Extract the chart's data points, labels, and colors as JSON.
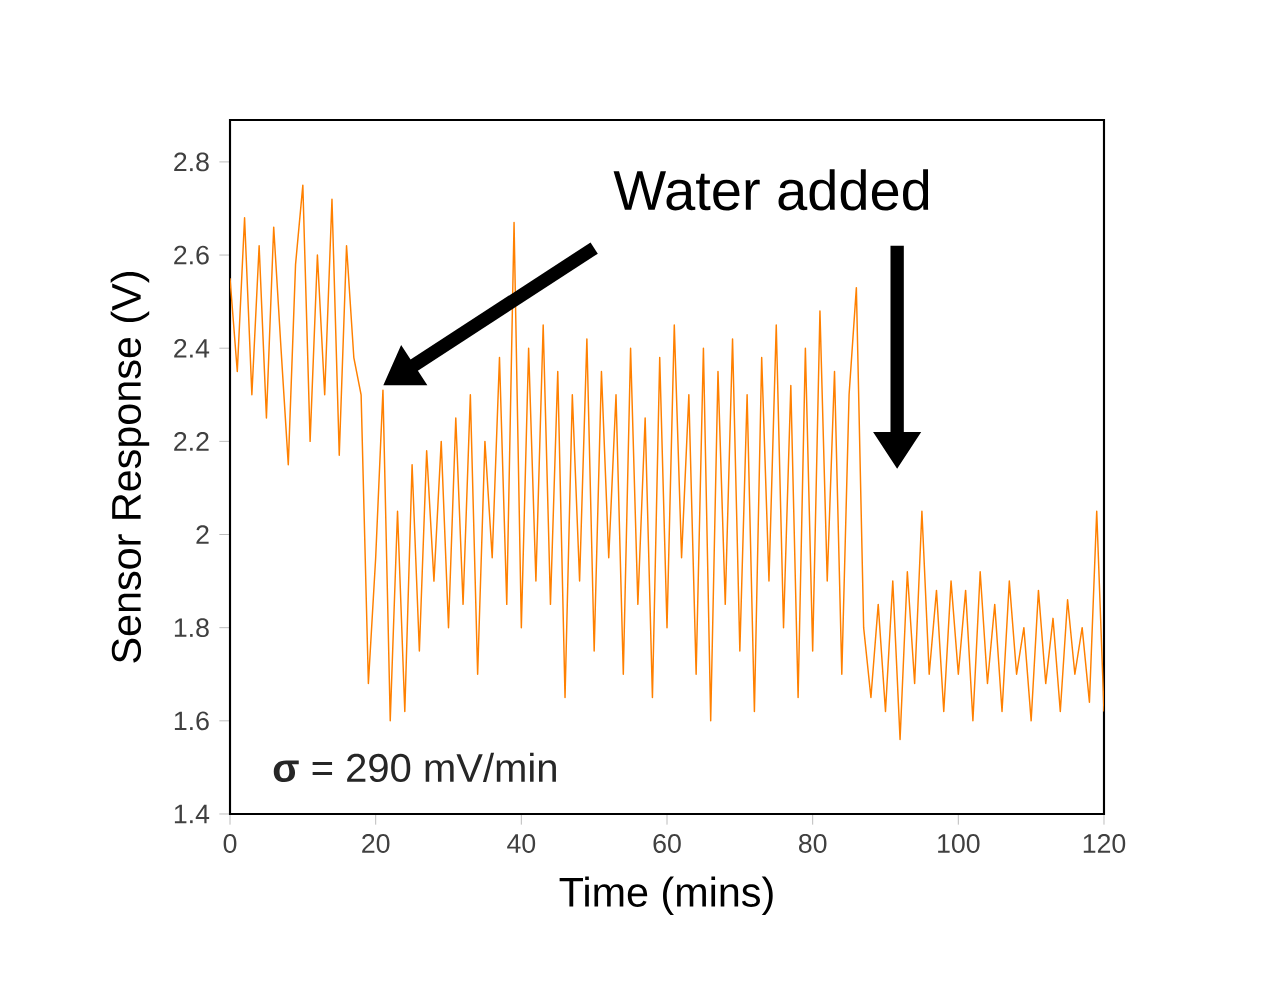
{
  "chart_data": {
    "type": "line",
    "xlabel": "Time (mins)",
    "ylabel": "Sensor Response (V)",
    "xlim": [
      0,
      120
    ],
    "ylim": [
      1.4,
      2.89
    ],
    "xticks": [
      0,
      20,
      40,
      60,
      80,
      100,
      120
    ],
    "yticks": [
      1.4,
      1.6,
      1.8,
      2,
      2.2,
      2.4,
      2.6,
      2.8
    ],
    "grid": false,
    "annotations": [
      "Water added",
      "**σ** = 290 mV/min"
    ],
    "series": [
      {
        "color": "#ff8000",
        "x": [
          0,
          1,
          2,
          3,
          4,
          5,
          6,
          7,
          8,
          9,
          10,
          11,
          12,
          13,
          14,
          15,
          16,
          17,
          18,
          19,
          20,
          21,
          22,
          23,
          24,
          25,
          26,
          27,
          28,
          29,
          30,
          31,
          32,
          33,
          34,
          35,
          36,
          37,
          38,
          39,
          40,
          41,
          42,
          43,
          44,
          45,
          46,
          47,
          48,
          49,
          50,
          51,
          52,
          53,
          54,
          55,
          56,
          57,
          58,
          59,
          60,
          61,
          62,
          63,
          64,
          65,
          66,
          67,
          68,
          69,
          70,
          71,
          72,
          73,
          74,
          75,
          76,
          77,
          78,
          79,
          80,
          81,
          82,
          83,
          84,
          85,
          86,
          87,
          88,
          89,
          90,
          91,
          92,
          93,
          94,
          95,
          96,
          97,
          98,
          99,
          100,
          101,
          102,
          103,
          104,
          105,
          106,
          107,
          108,
          109,
          110,
          111,
          112,
          113,
          114,
          115,
          116,
          117,
          118,
          119,
          120
        ],
        "values": [
          2.55,
          2.35,
          2.68,
          2.3,
          2.62,
          2.25,
          2.66,
          2.4,
          2.15,
          2.58,
          2.75,
          2.2,
          2.6,
          2.3,
          2.72,
          2.17,
          2.62,
          2.38,
          2.3,
          1.68,
          1.95,
          2.31,
          1.6,
          2.05,
          1.62,
          2.15,
          1.75,
          2.18,
          1.9,
          2.2,
          1.8,
          2.25,
          1.85,
          2.3,
          1.7,
          2.2,
          1.95,
          2.38,
          1.85,
          2.67,
          1.8,
          2.4,
          1.9,
          2.45,
          1.85,
          2.35,
          1.65,
          2.3,
          1.9,
          2.42,
          1.75,
          2.35,
          1.95,
          2.3,
          1.7,
          2.4,
          1.85,
          2.25,
          1.65,
          2.38,
          1.8,
          2.45,
          1.95,
          2.3,
          1.7,
          2.4,
          1.6,
          2.35,
          1.85,
          2.42,
          1.75,
          2.3,
          1.62,
          2.38,
          1.9,
          2.45,
          1.8,
          2.32,
          1.65,
          2.4,
          1.75,
          2.48,
          1.9,
          2.35,
          1.7,
          2.3,
          2.53,
          1.8,
          1.65,
          1.85,
          1.62,
          1.9,
          1.56,
          1.92,
          1.68,
          2.05,
          1.7,
          1.88,
          1.62,
          1.9,
          1.7,
          1.88,
          1.6,
          1.92,
          1.68,
          1.85,
          1.62,
          1.9,
          1.7,
          1.8,
          1.6,
          1.88,
          1.68,
          1.82,
          1.62,
          1.86,
          1.7,
          1.8,
          1.64,
          2.05,
          1.62
        ]
      }
    ]
  }
}
